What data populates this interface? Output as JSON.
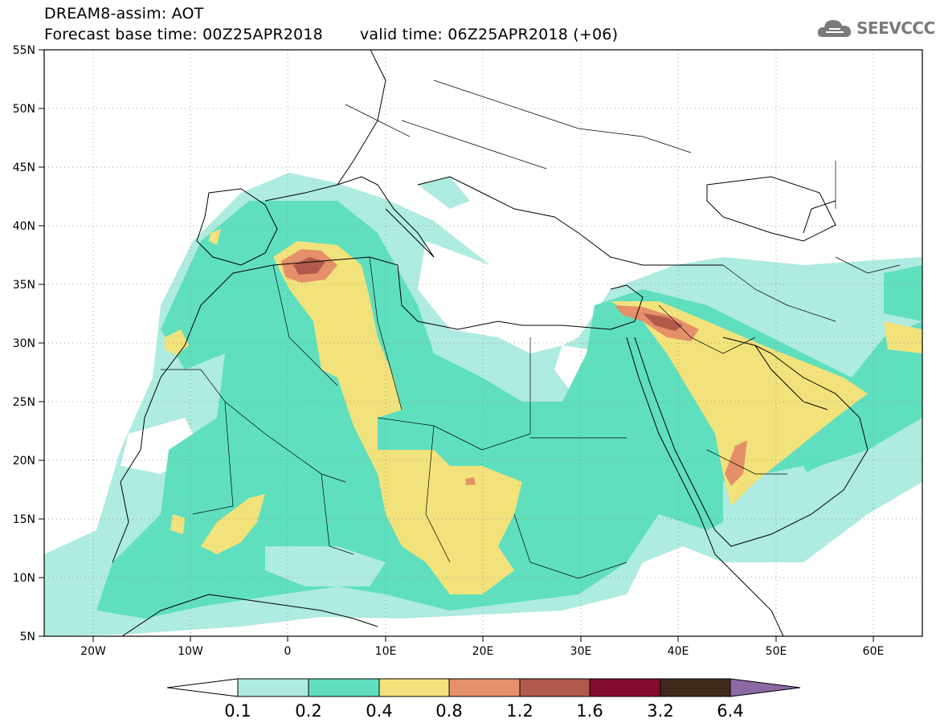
{
  "header": {
    "title_line1": "DREAM8-assim: AOT",
    "forecast_base": "Forecast base time: 00Z25APR2018",
    "valid_time": "valid time: 06Z25APR2018 (+06)"
  },
  "logo": {
    "text": "SEEVCCC",
    "icon": "cloud-icon"
  },
  "map": {
    "lon_range": [
      -25,
      65
    ],
    "lat_range": [
      5,
      55
    ],
    "lat_labels": [
      "55N",
      "50N",
      "45N",
      "40N",
      "35N",
      "30N",
      "25N",
      "20N",
      "15N",
      "10N",
      "5N"
    ],
    "lon_labels": [
      "20W",
      "10W",
      "0",
      "10E",
      "20E",
      "30E",
      "40E",
      "50E",
      "60E"
    ],
    "variable": "AOT"
  },
  "colorbar": {
    "levels": [
      "0.1",
      "0.2",
      "0.4",
      "0.8",
      "1.2",
      "1.6",
      "3.2",
      "6.4"
    ],
    "colors": [
      "#aeebe1",
      "#5fdfbe",
      "#f2e27b",
      "#e5906a",
      "#b05a4b",
      "#820b2e",
      "#3f2a1c",
      "#8c6aa6"
    ],
    "under_color": "#ffffff"
  }
}
